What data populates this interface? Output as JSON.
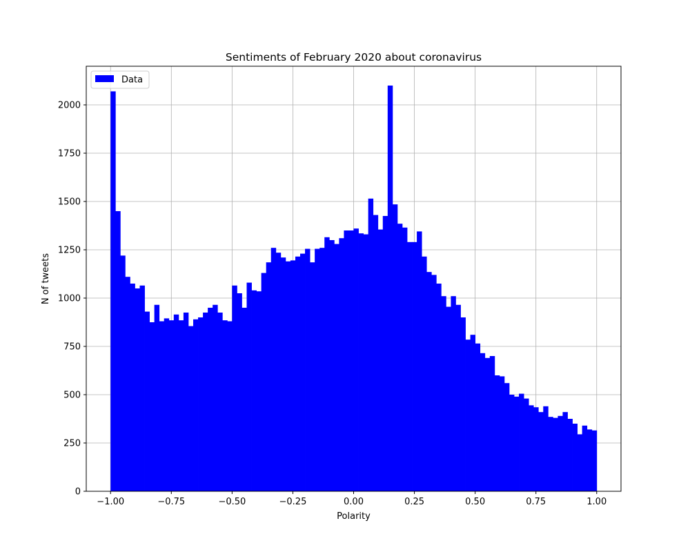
{
  "chart_data": {
    "type": "bar",
    "title": "Sentiments of February 2020 about coronavirus",
    "xlabel": "Polarity",
    "ylabel": "N of tweets",
    "xlim": [
      -1.1,
      1.1
    ],
    "ylim": [
      0,
      2200
    ],
    "xticks": [
      -1.0,
      -0.75,
      -0.5,
      -0.25,
      0.0,
      0.25,
      0.5,
      0.75,
      1.0
    ],
    "xtick_labels": [
      "−1.00",
      "−0.75",
      "−0.50",
      "−0.25",
      "0.00",
      "0.25",
      "0.50",
      "0.75",
      "1.00"
    ],
    "yticks": [
      0,
      250,
      500,
      750,
      1000,
      1250,
      1500,
      1750,
      2000
    ],
    "ytick_labels": [
      "0",
      "250",
      "500",
      "750",
      "1000",
      "1250",
      "1500",
      "1750",
      "2000"
    ],
    "grid": true,
    "legend_position": "top-left",
    "series": [
      {
        "name": "Data",
        "color": "#0000ff",
        "bin_range": [
          -1.0,
          1.0
        ],
        "values": [
          2070,
          1450,
          1220,
          1110,
          1075,
          1050,
          1065,
          930,
          875,
          965,
          880,
          895,
          885,
          915,
          885,
          925,
          855,
          890,
          900,
          925,
          950,
          965,
          925,
          885,
          880,
          1065,
          1025,
          950,
          1080,
          1040,
          1035,
          1130,
          1185,
          1260,
          1235,
          1210,
          1190,
          1195,
          1215,
          1230,
          1255,
          1185,
          1255,
          1260,
          1315,
          1300,
          1280,
          1310,
          1350,
          1350,
          1360,
          1335,
          1330,
          1515,
          1430,
          1355,
          1425,
          2100,
          1485,
          1385,
          1365,
          1290,
          1290,
          1345,
          1215,
          1135,
          1120,
          1075,
          1010,
          955,
          1010,
          965,
          900,
          785,
          810,
          765,
          715,
          690,
          700,
          600,
          595,
          560,
          500,
          490,
          505,
          480,
          445,
          435,
          410,
          440,
          385,
          380,
          390,
          410,
          375,
          350,
          295,
          340,
          320,
          315
        ]
      }
    ]
  }
}
